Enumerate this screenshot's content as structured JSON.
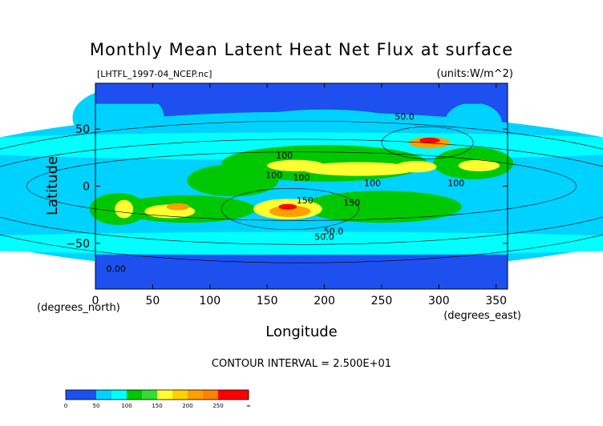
{
  "chart_data": {
    "type": "heatmap",
    "title": "Monthly Mean Latent Heat Net Flux at surface",
    "source_label": "[LHTFL_1997-04_NCEP.nc]",
    "units_label": "(units:W/m^2)",
    "xlabel": "Longitude",
    "ylabel": "Latitude",
    "x_unit_label": "(degrees_east)",
    "y_unit_label": "(degrees_north)",
    "xlim": [
      0,
      360
    ],
    "ylim": [
      -90,
      90
    ],
    "x_ticks": [
      "0",
      "50",
      "100",
      "150",
      "200",
      "250",
      "300",
      "350"
    ],
    "y_ticks": [
      "50",
      "0",
      "-50"
    ],
    "contour_interval_text": "CONTOUR INTERVAL = 2.500E+01",
    "contour_labels": [
      "50.0",
      "100",
      "100",
      "150",
      "150",
      "100",
      "50.0",
      "50.0",
      "100",
      "100",
      "0.00"
    ],
    "colorbar": {
      "levels": [
        0,
        25,
        50,
        75,
        100,
        125,
        150,
        175,
        200,
        225,
        250,
        275
      ],
      "tick_labels": [
        "0",
        "50",
        "100",
        "150",
        "200",
        "250",
        "∞"
      ],
      "colors": [
        "#1e50f0",
        "#1e50f0",
        "#00d2ff",
        "#00ffff",
        "#00c800",
        "#32dc32",
        "#ffff32",
        "#ffd200",
        "#ffa000",
        "#ff8200",
        "#ff0000",
        "#ff0000"
      ]
    },
    "grid": false
  }
}
